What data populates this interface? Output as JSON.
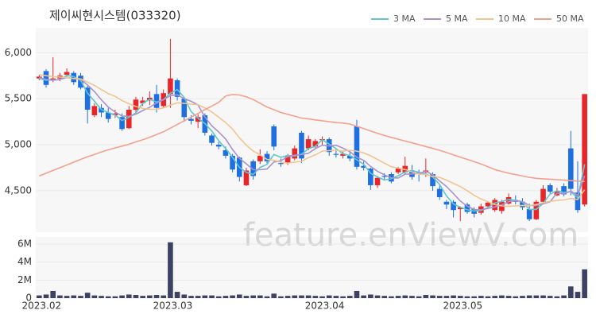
{
  "chart_data": [
    {
      "type": "candlestick",
      "title": "제이씨현시스템(033320)",
      "legend": "top-right",
      "watermark": "feature.enViewV.com",
      "up_color": "#e8262a",
      "down_color": "#1f6fe0",
      "open": [
        5720,
        5800,
        5700,
        5720,
        5760,
        5780,
        5750,
        5620,
        5320,
        5400,
        5350,
        5320,
        5300,
        5180,
        5380,
        5450,
        5480,
        5550,
        5420,
        5550,
        5700,
        5500,
        5280,
        5250,
        5320,
        5100,
        5000,
        4940,
        4880,
        4860,
        4560,
        4820,
        4820,
        4900,
        5200,
        4800,
        4800,
        4850,
        5130,
        4960,
        4980,
        5050,
        5060,
        4900,
        4880,
        4880,
        5200,
        4770,
        4740,
        4560,
        4660,
        4680,
        4700,
        4700,
        4720,
        4700,
        4700,
        4680,
        4520,
        4380,
        4380,
        4300,
        4350,
        4300,
        4260,
        4330,
        4290,
        4280,
        4360,
        4400,
        4380,
        4300,
        4190,
        4380,
        4560,
        4450,
        4550,
        4960,
        4480,
        4350
      ],
      "high": [
        5760,
        5820,
        5950,
        5780,
        5830,
        5800,
        5780,
        5640,
        5450,
        5440,
        5400,
        5380,
        5340,
        5420,
        5520,
        5520,
        5580,
        5650,
        5600,
        6150,
        5720,
        5520,
        5320,
        5330,
        5340,
        5120,
        5030,
        4980,
        4900,
        4870,
        4750,
        4840,
        4950,
        4930,
        5220,
        4850,
        4900,
        4990,
        5150,
        5100,
        5060,
        5090,
        5080,
        4960,
        4930,
        4920,
        5270,
        4820,
        4750,
        4660,
        4690,
        4700,
        4760,
        4870,
        4780,
        4730,
        4850,
        4700,
        4560,
        4400,
        4400,
        4330,
        4370,
        4320,
        4360,
        4380,
        4420,
        4400,
        4470,
        4450,
        4420,
        4360,
        4400,
        4560,
        4580,
        4530,
        4580,
        5150,
        4820,
        5550
      ],
      "low": [
        5700,
        5620,
        5680,
        5690,
        5740,
        5650,
        5600,
        5230,
        5300,
        5300,
        5240,
        5290,
        5150,
        5170,
        5350,
        5420,
        5430,
        5350,
        5400,
        5400,
        5480,
        5250,
        5220,
        5180,
        5100,
        4990,
        4950,
        4850,
        4700,
        4600,
        4550,
        4620,
        4790,
        4780,
        4940,
        4760,
        4780,
        4830,
        4800,
        4940,
        4960,
        4990,
        4880,
        4860,
        4850,
        4820,
        4730,
        4720,
        4510,
        4530,
        4620,
        4580,
        4680,
        4680,
        4620,
        4600,
        4650,
        4500,
        4400,
        4300,
        4210,
        4170,
        4250,
        4210,
        4240,
        4320,
        4270,
        4250,
        4350,
        4350,
        4290,
        4170,
        4180,
        4370,
        4470,
        4440,
        4440,
        4450,
        4260,
        4330
      ],
      "close": [
        5740,
        5650,
        5720,
        5750,
        5790,
        5680,
        5620,
        5380,
        5420,
        5350,
        5280,
        5340,
        5170,
        5380,
        5490,
        5480,
        5510,
        5400,
        5560,
        5720,
        5520,
        5300,
        5260,
        5300,
        5130,
        5020,
        4980,
        4880,
        4730,
        4650,
        4720,
        4660,
        4880,
        4820,
        4980,
        4790,
        4880,
        4960,
        4850,
        5060,
        5040,
        5060,
        4920,
        4890,
        4900,
        4850,
        4760,
        4750,
        4560,
        4640,
        4650,
        4600,
        4740,
        4770,
        4650,
        4680,
        4720,
        4550,
        4430,
        4350,
        4290,
        4320,
        4270,
        4250,
        4330,
        4370,
        4400,
        4380,
        4430,
        4380,
        4320,
        4190,
        4380,
        4520,
        4490,
        4490,
        4460,
        4520,
        4290,
        5550
      ],
      "series": [
        {
          "name": "3 MA",
          "color": "#5ec8d0",
          "values": [
            5720,
            5700,
            5703,
            5707,
            5753,
            5740,
            5697,
            5560,
            5473,
            5383,
            5350,
            5323,
            5263,
            5297,
            5347,
            5450,
            5493,
            5463,
            5490,
            5560,
            5600,
            5513,
            5360,
            5287,
            5230,
            5150,
            5043,
            4960,
            4863,
            4753,
            4700,
            4677,
            4753,
            4787,
            4893,
            4863,
            4883,
            4877,
            4897,
            4957,
            4983,
            5053,
            5007,
            4957,
            4903,
            4880,
            4837,
            4787,
            4690,
            4650,
            4617,
            4630,
            4663,
            4703,
            4720,
            4700,
            4683,
            4650,
            4567,
            4443,
            4357,
            4320,
            4293,
            4280,
            4283,
            4317,
            4367,
            4383,
            4403,
            4397,
            4377,
            4297,
            4297,
            4363,
            4463,
            4500,
            4480,
            4490,
            4423,
            4787
          ]
        },
        {
          "name": "5 MA",
          "color": "#a993cf",
          "values": [
            5730,
            5710,
            5700,
            5710,
            5730,
            5718,
            5712,
            5648,
            5578,
            5488,
            5410,
            5354,
            5312,
            5308,
            5332,
            5372,
            5406,
            5454,
            5488,
            5534,
            5542,
            5500,
            5472,
            5432,
            5302,
            5206,
            5138,
            5062,
            4948,
            4852,
            4792,
            4728,
            4728,
            4736,
            4812,
            4826,
            4870,
            4886,
            4892,
            4908,
            4958,
            4994,
            4986,
            4994,
            4962,
            4924,
            4864,
            4830,
            4764,
            4712,
            4672,
            4640,
            4638,
            4680,
            4682,
            4688,
            4712,
            4674,
            4606,
            4546,
            4468,
            4388,
            4332,
            4296,
            4292,
            4308,
            4324,
            4346,
            4382,
            4392,
            4382,
            4340,
            4340,
            4358,
            4380,
            4474,
            4468,
            4496,
            4450,
            4662
          ]
        },
        {
          "name": "10 MA",
          "color": "#f2c48f",
          "values": [
            5760,
            5750,
            5740,
            5735,
            5730,
            5720,
            5715,
            5680,
            5645,
            5600,
            5555,
            5525,
            5480,
            5445,
            5415,
            5395,
            5385,
            5385,
            5400,
            5430,
            5455,
            5450,
            5440,
            5435,
            5400,
            5355,
            5300,
            5240,
            5170,
            5075,
            4995,
            4930,
            4890,
            4840,
            4830,
            4810,
            4800,
            4810,
            4820,
            4860,
            4890,
            4930,
            4935,
            4940,
            4930,
            4940,
            4930,
            4910,
            4880,
            4840,
            4800,
            4760,
            4745,
            4730,
            4705,
            4680,
            4675,
            4655,
            4645,
            4615,
            4580,
            4545,
            4500,
            4450,
            4410,
            4380,
            4350,
            4335,
            4330,
            4335,
            4340,
            4340,
            4350,
            4370,
            4385,
            4395,
            4400,
            4415,
            4405,
            4510
          ]
        },
        {
          "name": "50 MA",
          "color": "#f4a08e",
          "values": [
            4660,
            4690,
            4720,
            4750,
            4780,
            4810,
            4840,
            4870,
            4895,
            4920,
            4945,
            4965,
            4985,
            5005,
            5030,
            5055,
            5080,
            5110,
            5140,
            5180,
            5220,
            5260,
            5300,
            5340,
            5380,
            5420,
            5460,
            5530,
            5545,
            5540,
            5520,
            5490,
            5450,
            5410,
            5380,
            5350,
            5330,
            5310,
            5290,
            5280,
            5270,
            5260,
            5250,
            5240,
            5235,
            5225,
            5200,
            5175,
            5150,
            5125,
            5100,
            5080,
            5060,
            5040,
            5020,
            5000,
            4980,
            4960,
            4940,
            4915,
            4890,
            4865,
            4840,
            4815,
            4790,
            4760,
            4730,
            4710,
            4690,
            4675,
            4660,
            4645,
            4635,
            4630,
            4625,
            4620,
            4615,
            4610,
            4605,
            4600
          ]
        }
      ],
      "ylim": [
        4050,
        6270
      ],
      "yticks": [
        {
          "value": 4500,
          "label": "4,500"
        },
        {
          "value": 5000,
          "label": "5,000"
        },
        {
          "value": 5500,
          "label": "5,500"
        },
        {
          "value": 6000,
          "label": "6,000"
        }
      ],
      "grid": true
    },
    {
      "type": "bar",
      "color": "#3d4163",
      "categories": [
        "2023.02",
        null,
        null,
        null,
        null,
        null,
        null,
        null,
        null,
        null,
        null,
        null,
        null,
        null,
        null,
        null,
        null,
        null,
        null,
        "2023.03",
        null,
        null,
        null,
        null,
        null,
        null,
        null,
        null,
        null,
        null,
        null,
        null,
        null,
        null,
        null,
        null,
        null,
        null,
        null,
        null,
        null,
        "2023.04",
        null,
        null,
        null,
        null,
        null,
        null,
        null,
        null,
        null,
        null,
        null,
        null,
        null,
        null,
        null,
        null,
        null,
        null,
        null,
        "2023.05",
        null,
        null,
        null,
        null,
        null,
        null,
        null,
        null,
        null,
        null,
        null,
        null,
        null,
        null,
        null,
        null,
        null,
        null
      ],
      "values": [
        300000,
        400000,
        800000,
        300000,
        250000,
        300000,
        250000,
        600000,
        300000,
        250000,
        200000,
        200000,
        300000,
        400000,
        350000,
        250000,
        300000,
        350000,
        300000,
        6200000,
        700000,
        400000,
        250000,
        250000,
        300000,
        300000,
        200000,
        250000,
        300000,
        400000,
        250000,
        300000,
        300000,
        200000,
        500000,
        200000,
        250000,
        300000,
        300000,
        300000,
        250000,
        200000,
        300000,
        250000,
        200000,
        250000,
        800000,
        300000,
        400000,
        300000,
        250000,
        200000,
        250000,
        300000,
        250000,
        200000,
        350000,
        300000,
        250000,
        250000,
        300000,
        250000,
        200000,
        200000,
        250000,
        200000,
        250000,
        300000,
        250000,
        200000,
        250000,
        300000,
        300000,
        300000,
        250000,
        200000,
        300000,
        1300000,
        700000,
        3200000
      ],
      "ylim": [
        0,
        6800000
      ],
      "yticks": [
        0,
        {
          "value": 2000000,
          "label": "2M"
        },
        {
          "value": 4000000,
          "label": "4M"
        },
        {
          "value": 6000000,
          "label": "6M"
        }
      ],
      "grid": true
    }
  ]
}
